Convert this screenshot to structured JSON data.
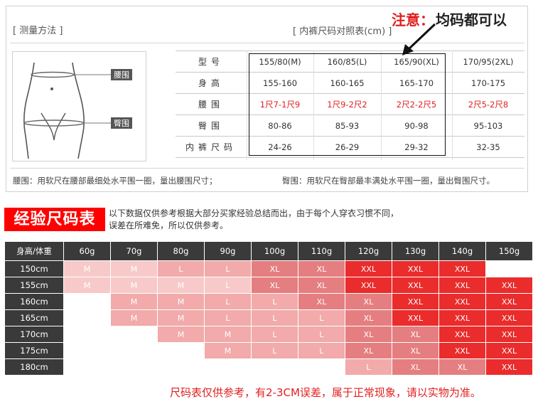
{
  "header": {
    "method_label": "[ 测量方法 ]",
    "table_label": "[ 内裤尺码对照表(cm) ]",
    "notice_red": "注意：",
    "notice_black": "均码都可以"
  },
  "figure": {
    "waist_label": "腰围",
    "hip_label": "臀围"
  },
  "size_table": {
    "rows": [
      {
        "label": "型号",
        "values": [
          "155/80(M)",
          "160/85(L)",
          "165/90(XL)",
          "170/95(2XL)"
        ]
      },
      {
        "label": "身高",
        "values": [
          "155-160",
          "160-165",
          "165-170",
          "170-175"
        ]
      },
      {
        "label": "腰围",
        "values": [
          "1尺7-1尺9",
          "1尺9-2尺2",
          "2尺2-2尺5",
          "2尺5-2尺8"
        ]
      },
      {
        "label": "臀围",
        "values": [
          "80-86",
          "85-93",
          "90-98",
          "95-103"
        ]
      },
      {
        "label": "内裤尺码",
        "values": [
          "24-26",
          "26-29",
          "29-32",
          "32-35"
        ]
      }
    ]
  },
  "notes": {
    "waist": "腰围：用软尺在腰部最细处水平围一圈，量出腰围尺寸；",
    "hip": "臀围：用软尺在臀部最丰满处水平围一圈，量出臀围尺寸。"
  },
  "experience": {
    "title": "经验尺码表",
    "desc_line1": "以下数据仅供参考根据大部分买家经验总结而出，由于每个人穿衣习惯不同，",
    "desc_line2": "误差在所难免，所以仅供参考。",
    "corner": "身高/体重",
    "weights": [
      "60g",
      "70g",
      "80g",
      "90g",
      "100g",
      "110g",
      "120g",
      "130g",
      "140g",
      "150g"
    ],
    "heights": [
      "150cm",
      "155cm",
      "160cm",
      "165cm",
      "170cm",
      "175cm",
      "180cm"
    ],
    "cells": [
      [
        "M",
        "M",
        "L",
        "L",
        "XL",
        "XL",
        "XXL",
        "XXL",
        "XXL",
        ""
      ],
      [
        "M",
        "M",
        "M",
        "L",
        "XL",
        "XL",
        "XXL",
        "XXL",
        "XXL",
        "XXL"
      ],
      [
        "",
        "M",
        "M",
        "L",
        "L",
        "XL",
        "XL",
        "XXL",
        "XXL",
        "XXL"
      ],
      [
        "",
        "M",
        "M",
        "L",
        "L",
        "L",
        "XL",
        "XXL",
        "XXL",
        "XXL"
      ],
      [
        "",
        "",
        "M",
        "M",
        "L",
        "L",
        "XL",
        "XL",
        "XXL",
        "XXL"
      ],
      [
        "",
        "",
        "",
        "M",
        "L",
        "L",
        "XL",
        "XL",
        "XXL",
        "XXL"
      ],
      [
        "",
        "",
        "",
        "",
        "",
        "",
        "L",
        "XL",
        "XL",
        "XXL"
      ]
    ],
    "shades": [
      [
        1,
        1,
        2,
        2,
        3,
        3,
        4,
        4,
        4,
        0
      ],
      [
        1,
        1,
        1,
        1,
        3,
        3,
        4,
        4,
        4,
        4
      ],
      [
        0,
        2,
        2,
        2,
        2,
        3,
        3,
        4,
        4,
        4
      ],
      [
        0,
        2,
        2,
        2,
        2,
        2,
        3,
        4,
        4,
        4
      ],
      [
        0,
        0,
        2,
        2,
        2,
        2,
        3,
        3,
        4,
        4
      ],
      [
        0,
        0,
        0,
        2,
        2,
        2,
        3,
        3,
        4,
        4
      ],
      [
        0,
        0,
        0,
        0,
        0,
        0,
        2,
        3,
        3,
        4
      ]
    ],
    "colors": {
      "header": "#3a3a3a",
      "light": "#f8c9c9",
      "pink": "#f2aaaa",
      "rose": "#e57e80",
      "red": "#ea2c2c",
      "title_bg": "#ff0000"
    }
  },
  "footer": "尺码表仅供参考，有2-3CM误差，属于正常现象，请以实物为准。"
}
